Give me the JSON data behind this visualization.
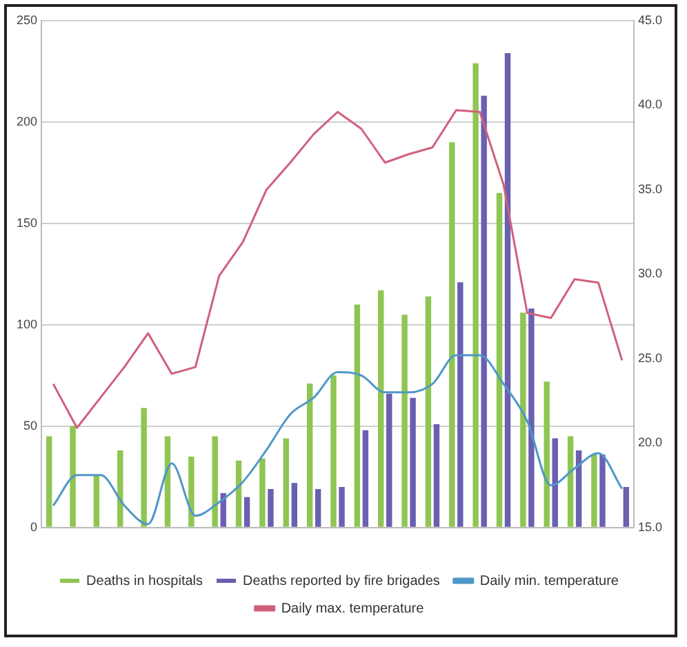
{
  "chart_data": {
    "type": "bar",
    "categories": [
      null,
      null,
      null,
      null,
      null,
      null,
      null,
      null,
      null,
      null,
      null,
      null,
      null,
      null,
      null,
      null,
      null,
      null,
      null,
      null,
      null,
      null,
      null,
      null,
      null
    ],
    "series": [
      {
        "name": "Deaths in hospitals",
        "color": "#8fc552",
        "values": [
          45,
          50,
          26,
          38,
          59,
          45,
          35,
          45,
          33,
          34,
          44,
          71,
          75,
          110,
          117,
          105,
          114,
          190,
          229,
          165,
          106,
          72,
          45,
          36,
          null
        ]
      },
      {
        "name": "Deaths reported by fire brigades",
        "color": "#6a5fb0",
        "values": [
          null,
          null,
          null,
          null,
          null,
          null,
          null,
          17,
          15,
          19,
          22,
          19,
          20,
          48,
          66,
          64,
          51,
          121,
          213,
          234,
          108,
          44,
          38,
          36,
          20
        ]
      },
      {
        "name": "Daily min. temperature",
        "type": "line",
        "axis": "y2",
        "color": "#4f97c8",
        "values": [
          16.3,
          18.1,
          18.1,
          16.3,
          15.2,
          18.8,
          15.7,
          16.5,
          17.7,
          19.6,
          21.7,
          22.7,
          24.2,
          24.0,
          23.0,
          23.0,
          23.5,
          25.2,
          25.2,
          23.5,
          21.3,
          17.5,
          18.5,
          19.4,
          17.3
        ]
      },
      {
        "name": "Daily max. temperature",
        "type": "line",
        "axis": "y2",
        "color": "#d0607a",
        "values": [
          23.5,
          20.9,
          22.7,
          24.5,
          26.5,
          24.1,
          24.5,
          29.9,
          31.9,
          35.0,
          36.6,
          38.3,
          39.6,
          38.6,
          36.6,
          37.1,
          37.5,
          39.7,
          39.6,
          35.3,
          27.7,
          27.4,
          29.7,
          29.5,
          24.9
        ]
      }
    ],
    "ylim": [
      0,
      250
    ],
    "yticks": [
      0,
      50,
      100,
      150,
      200,
      250
    ],
    "y2lim": [
      15,
      45
    ],
    "y2ticks": [
      {
        "value": 15,
        "label": "15.0"
      },
      {
        "value": 20,
        "label": "20.0"
      },
      {
        "value": 25,
        "label": "25.0"
      },
      {
        "value": 30,
        "label": "30.0"
      },
      {
        "value": 35,
        "label": "35.0"
      },
      {
        "value": 40,
        "label": "40.0"
      },
      {
        "value": 45,
        "label": "45.0"
      }
    ],
    "grid": "y",
    "legend": "bottom",
    "marker": "none"
  }
}
